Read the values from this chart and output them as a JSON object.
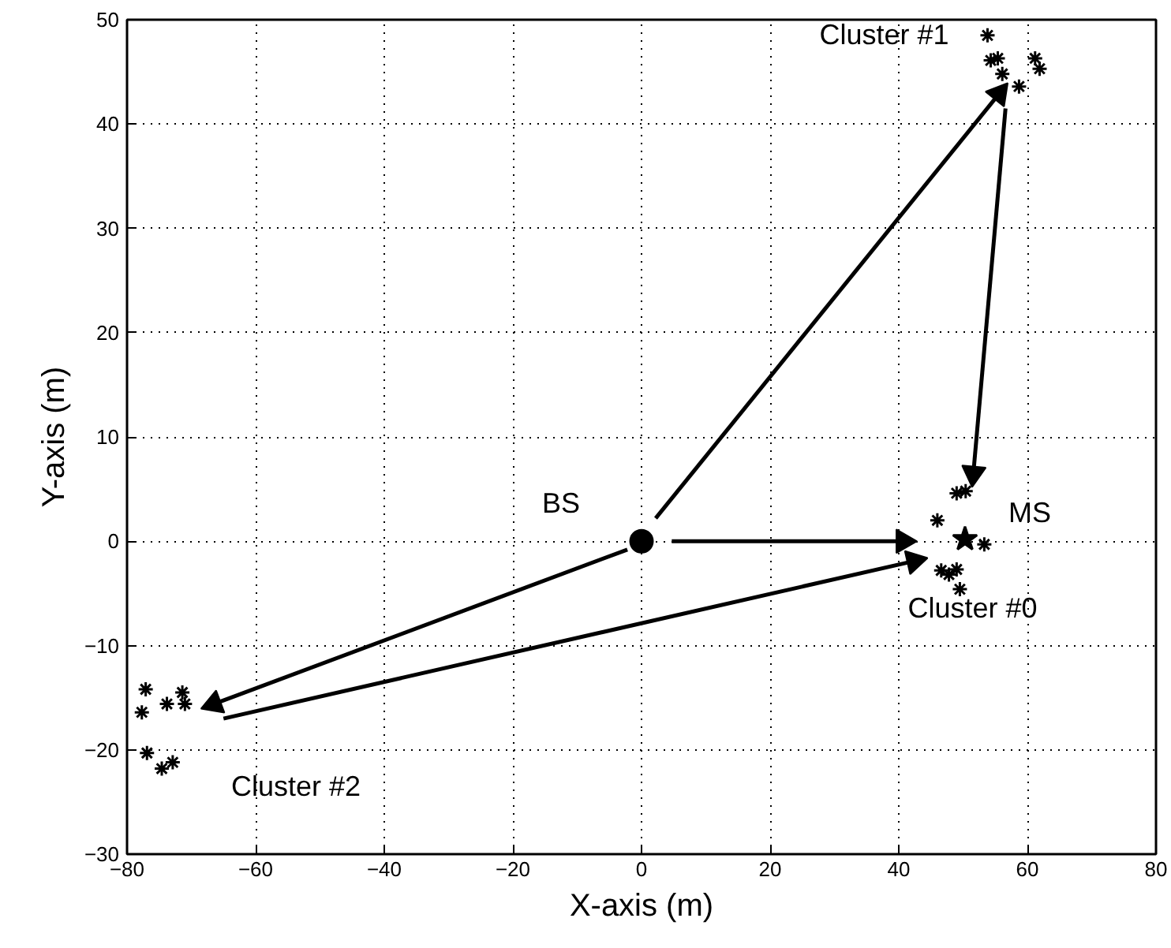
{
  "chart_data": {
    "type": "scatter",
    "xlabel": "X-axis (m)",
    "ylabel": "Y-axis (m)",
    "xlim": [
      -80,
      80
    ],
    "ylim": [
      -30,
      50
    ],
    "xticks": [
      -80,
      -60,
      -40,
      -20,
      0,
      20,
      40,
      60,
      80
    ],
    "yticks": [
      -30,
      -20,
      -10,
      0,
      10,
      20,
      30,
      40,
      50
    ],
    "grid": true,
    "series": [
      {
        "marker": "cross",
        "color": "#000000",
        "x": [
          53.8,
          54.3,
          55.4,
          56.1,
          58.7,
          61.2,
          61.9
        ],
        "values": [
          48.5,
          46.1,
          46.3,
          44.8,
          43.6,
          46.3,
          45.3
        ]
      },
      {
        "marker": "cross",
        "color": "#000000",
        "x": [
          49.0,
          50.4,
          46.0,
          53.3,
          46.6,
          47.8,
          49.0,
          49.5
        ],
        "values": [
          4.6,
          4.8,
          2.0,
          -0.3,
          -2.8,
          -3.2,
          -2.7,
          -4.6
        ]
      },
      {
        "marker": "cross",
        "color": "#000000",
        "x": [
          -77.1,
          -77.7,
          -73.8,
          -71.4,
          -71.0,
          -76.9,
          -74.6,
          -72.9
        ],
        "values": [
          -14.2,
          -16.4,
          -15.6,
          -14.5,
          -15.6,
          -20.3,
          -21.8,
          -21.2
        ]
      },
      {
        "marker": "circle",
        "color": "#000000",
        "x": [
          0
        ],
        "values": [
          0
        ]
      },
      {
        "marker": "star",
        "color": "#000000",
        "x": [
          50.3
        ],
        "values": [
          0.2
        ]
      },
      {
        "type": "line",
        "color": "#000000",
        "x": [
          2.2,
          55.6
        ],
        "values": [
          2.2,
          42.9
        ]
      },
      {
        "type": "line",
        "color": "#000000",
        "x": [
          56.6,
          51.6
        ],
        "values": [
          41.5,
          6.5
        ]
      },
      {
        "type": "line",
        "color": "#000000",
        "x": [
          4.7,
          40.7
        ],
        "values": [
          0,
          0
        ]
      },
      {
        "type": "line",
        "color": "#000000",
        "x": [
          -2.2,
          -66.5
        ],
        "values": [
          -0.8,
          -15.6
        ]
      },
      {
        "type": "line",
        "color": "#000000",
        "x": [
          -65.0,
          42.4
        ],
        "values": [
          -17.0,
          -1.9
        ]
      }
    ],
    "annotations": [
      {
        "text": "BS",
        "x": 0,
        "y": 0
      },
      {
        "text": "MS",
        "x": 50.3,
        "y": 0.2
      },
      {
        "text": "Cluster #1",
        "x": 55.4,
        "y": 46.3
      },
      {
        "text": "Cluster #0",
        "x": 49.5,
        "y": -4.6
      },
      {
        "text": "Cluster #2",
        "x": -74.6,
        "y": -21.8
      }
    ]
  }
}
